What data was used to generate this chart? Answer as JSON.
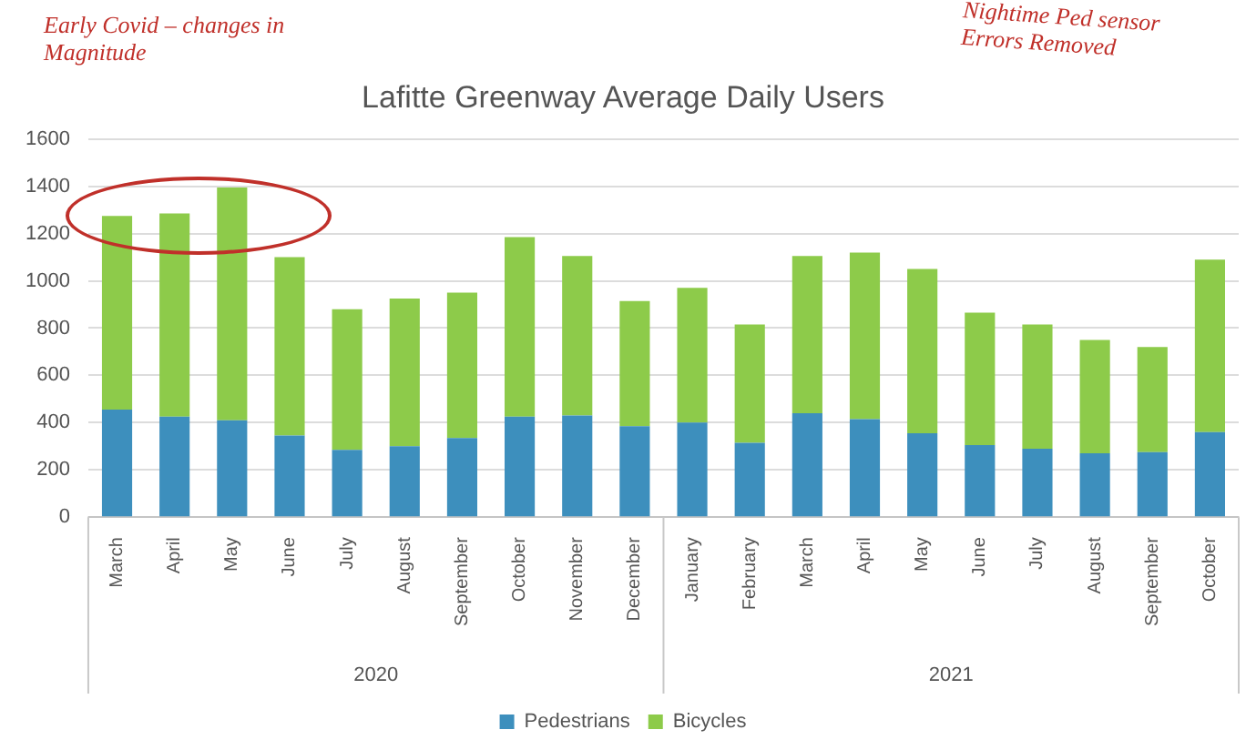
{
  "chart_data": {
    "type": "bar",
    "title": "Lafitte Greenway Average Daily Users",
    "stacked": true,
    "categories": [
      "March",
      "April",
      "May",
      "June",
      "July",
      "August",
      "September",
      "October",
      "November",
      "December",
      "January",
      "February",
      "March",
      "April",
      "May",
      "June",
      "July",
      "August",
      "September",
      "October"
    ],
    "series": [
      {
        "name": "Pedestrians",
        "color": "#3d8fbd",
        "values": [
          455,
          425,
          410,
          345,
          285,
          300,
          335,
          425,
          430,
          385,
          400,
          315,
          440,
          415,
          355,
          305,
          290,
          270,
          275,
          360
        ]
      },
      {
        "name": "Bicycles",
        "color": "#8dcb4a",
        "values": [
          820,
          860,
          985,
          755,
          595,
          625,
          615,
          760,
          675,
          530,
          570,
          500,
          665,
          705,
          695,
          560,
          525,
          480,
          445,
          730
        ]
      }
    ],
    "ylim": [
      0,
      1600
    ],
    "yticks": [
      0,
      200,
      400,
      600,
      800,
      1000,
      1200,
      1400,
      1600
    ],
    "grid": "y",
    "legend": "bottom",
    "annotations": [
      "Early Covid – changes in Magnitude",
      "Nightime Ped sensor Errors Removed",
      "2020",
      "2021"
    ]
  }
}
